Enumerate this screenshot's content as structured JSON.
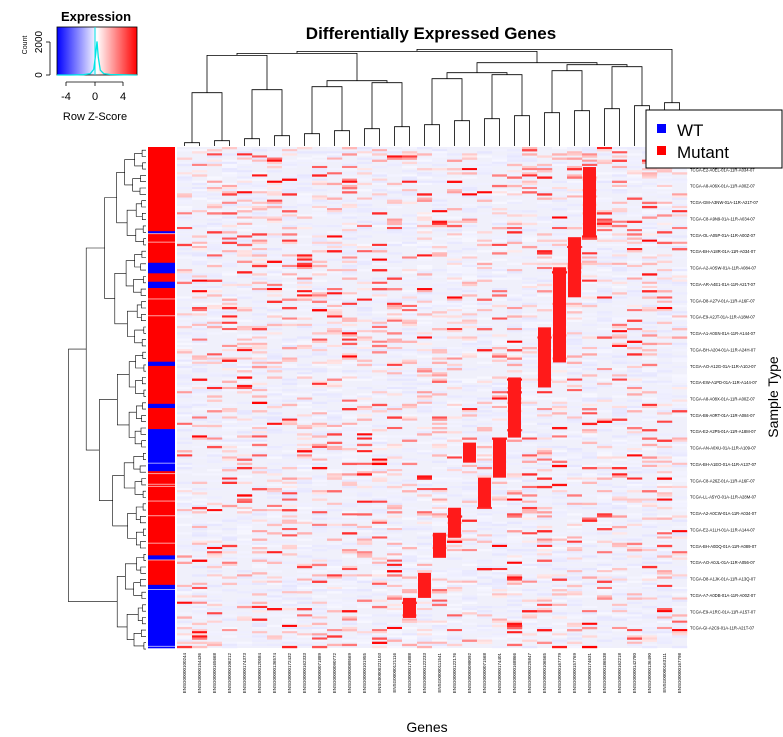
{
  "chart_data": {
    "type": "heatmap",
    "title": "Differentially Expressed Genes",
    "xlabel": "Genes",
    "ylabel": "Sample Type",
    "color_key": {
      "title": "Expression",
      "xlabel": "Row Z-Score",
      "ylabel": "Count",
      "x_ticks": [
        "-4",
        "0",
        "4"
      ],
      "y_ticks": [
        "0",
        "2000"
      ],
      "xlim": [
        -6,
        6
      ],
      "ylim": [
        0,
        3000
      ],
      "low_color": "#0000ff",
      "mid_color": "#ffffff",
      "high_color": "#ff0000",
      "histogram_color": "#00e5e5",
      "density": {
        "x": [
          -6,
          -4,
          -2,
          -1,
          -0.5,
          -0.2,
          0,
          0.2,
          0.5,
          1,
          2,
          4,
          6
        ],
        "y": [
          0,
          0,
          20,
          80,
          350,
          1300,
          2100,
          1100,
          300,
          90,
          30,
          10,
          0
        ]
      }
    },
    "legend": {
      "position": "top-right",
      "entries": [
        {
          "label": "WT",
          "color": "#0000ff"
        },
        {
          "label": "Mutant",
          "color": "#ff0000"
        }
      ]
    },
    "sample_type_colors": {
      "WT": "#0000ff",
      "Mutant": "#ff0000"
    },
    "sample_groups": [
      {
        "type": "Mutant",
        "count": 40
      },
      {
        "type": "WT",
        "count": 1
      },
      {
        "type": "Mutant",
        "count": 14
      },
      {
        "type": "WT",
        "count": 5
      },
      {
        "type": "Mutant",
        "count": 4
      },
      {
        "type": "WT",
        "count": 3
      },
      {
        "type": "Mutant",
        "count": 35
      },
      {
        "type": "WT",
        "count": 2
      },
      {
        "type": "Mutant",
        "count": 18
      },
      {
        "type": "WT",
        "count": 2
      },
      {
        "type": "Mutant",
        "count": 10
      },
      {
        "type": "WT",
        "count": 20
      },
      {
        "type": "Mutant",
        "count": 40
      },
      {
        "type": "WT",
        "count": 2
      },
      {
        "type": "Mutant",
        "count": 12
      },
      {
        "type": "WT",
        "count": 30
      }
    ],
    "genes": [
      "ENSG00000100244",
      "ENSG00000154436",
      "ENSG00000165668",
      "ENSG00000106212",
      "ENSG00000174373",
      "ENSG00000120584",
      "ENSG00000136574",
      "ENSG00000172432",
      "ENSG00000162333",
      "ENSG00000071889",
      "ENSG00000090772",
      "ENSG00000089569",
      "ENSG00000101955",
      "ENSG00000221103",
      "ENSG00000121116",
      "ENSG00000174888",
      "ENSG00000122233",
      "ENSG00000111541",
      "ENSG00000122176",
      "ENSG00000098092",
      "ENSG00000071568",
      "ENSG00000174401",
      "ENSG00000168866",
      "ENSG00000225847",
      "ENSG00000106565",
      "ENSG00000167779",
      "ENSG00000157769",
      "ENSG00000174631",
      "ENSG00000186538",
      "ENSG00000162218",
      "ENSG00000142780",
      "ENSG00000136490",
      "ENSG00000163111",
      "ENSG00000167798"
    ],
    "sample_labels": [
      "TCGA-BH-A0BT-01A-11R-A034-07",
      "TCGA-E2-A0EL-01A-11R-A034-07",
      "TCGA-A8-A06X-01A-11R-A00Z-07",
      "TCGA-GM-A3NW-01A-11R-A21T-07",
      "TCGA-C8-A9N9-01A-11R-A034-07",
      "TCGA-OL-A05P-01A-11R-A00Z-07",
      "TCGA-BH-A18R-01A-11R-A034-07",
      "TCGA-A2-A0SW-01A-11R-A084-07",
      "TCGA-AR-A4E1-01A-11R-A21T-07",
      "TCGA-D8-A27V-01A-11R-A16F-07",
      "TCGA-E9-A2JT-01A-11R-A18M-07",
      "TCGA-A1-A0SN-01A-11R-A144-07",
      "TCGA-BH-A204-01A-11R-A24H-07",
      "TCGA-AO-A12G-01A-11R-A10J-07",
      "TCGA-EW-A1PD-01A-11R-A144-07",
      "TCGA-A8-A08X-01A-11R-A00Z-07",
      "TCGA-B6-A0RT-01A-11R-A084-07",
      "TCGA-E2-A2P5-01A-11R-A18M-07",
      "TCGA-AN-A0XU-01A-11R-A109-07",
      "TCGA-BH-A1EO-01A-11R-A137-07",
      "TCGA-C8-A26Z-01A-11R-A16F-07",
      "TCGA-LL-A5YO-01A-11R-A28M-07",
      "TCGA-A2-A0CW-01A-11R-A034-07",
      "TCGA-E2-A1LH-01A-11R-A144-07",
      "TCGA-BH-A0DQ-01A-11R-A089-07",
      "TCGA-AO-A0JL-01A-11R-A056-07",
      "TCGA-D8-A1JK-01A-11R-A13Q-07",
      "TCGA-A7-A0DB-01A-11R-A00Z-07",
      "TCGA-E9-A1RC-01A-11R-A157-07",
      "TCGA-GI-A2C9-01A-11R-A21T-07"
    ]
  }
}
